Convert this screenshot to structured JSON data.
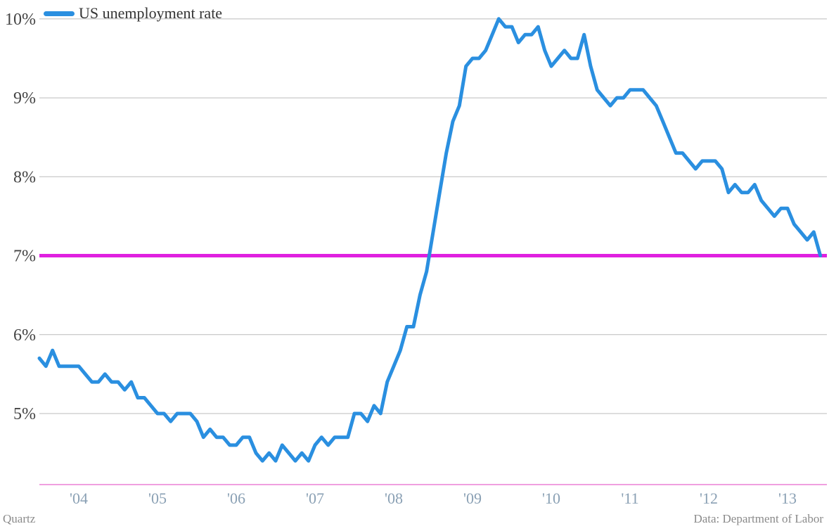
{
  "legend": {
    "label": "US unemployment rate",
    "color": "#2a8fe0"
  },
  "footer": {
    "source_left": "Quartz",
    "source_right": "Data: Department of Labor"
  },
  "colors": {
    "series": "#2a8fe0",
    "reference": "#e020e0",
    "grid": "#bbbbbb",
    "axis": "#e040c0"
  },
  "chart_data": {
    "type": "line",
    "title": "",
    "xlabel": "",
    "ylabel": "",
    "ylim": [
      4.1,
      10.15
    ],
    "xlim": [
      2003.5,
      2013.5
    ],
    "grid": true,
    "legend_position": "top-left",
    "y_ticks": [
      {
        "value": 5,
        "label": "5%"
      },
      {
        "value": 6,
        "label": "6%"
      },
      {
        "value": 7,
        "label": "7%"
      },
      {
        "value": 8,
        "label": "8%"
      },
      {
        "value": 9,
        "label": "9%"
      },
      {
        "value": 10,
        "label": "10%"
      }
    ],
    "x_ticks": [
      {
        "value": 2004,
        "label": "'04"
      },
      {
        "value": 2005,
        "label": "'05"
      },
      {
        "value": 2006,
        "label": "'06"
      },
      {
        "value": 2007,
        "label": "'07"
      },
      {
        "value": 2008,
        "label": "'08"
      },
      {
        "value": 2009,
        "label": "'09"
      },
      {
        "value": 2010,
        "label": "'10"
      },
      {
        "value": 2011,
        "label": "'11"
      },
      {
        "value": 2012,
        "label": "'12"
      },
      {
        "value": 2013,
        "label": "'13"
      }
    ],
    "reference_line": {
      "value": 7
    },
    "series": [
      {
        "name": "US unemployment rate",
        "start": "2003-07",
        "frequency": "monthly",
        "values": [
          5.7,
          5.6,
          5.8,
          5.6,
          5.6,
          5.6,
          5.6,
          5.5,
          5.4,
          5.4,
          5.5,
          5.4,
          5.4,
          5.3,
          5.4,
          5.2,
          5.2,
          5.1,
          5.0,
          5.0,
          4.9,
          5.0,
          5.0,
          5.0,
          4.9,
          4.7,
          4.8,
          4.7,
          4.7,
          4.6,
          4.6,
          4.7,
          4.7,
          4.5,
          4.4,
          4.5,
          4.4,
          4.6,
          4.5,
          4.4,
          4.5,
          4.4,
          4.6,
          4.7,
          4.6,
          4.7,
          4.7,
          4.7,
          5.0,
          5.0,
          4.9,
          5.1,
          5.0,
          5.4,
          5.6,
          5.8,
          6.1,
          6.1,
          6.5,
          6.8,
          7.3,
          7.8,
          8.3,
          8.7,
          8.9,
          9.4,
          9.5,
          9.5,
          9.6,
          9.8,
          10.0,
          9.9,
          9.9,
          9.7,
          9.8,
          9.8,
          9.9,
          9.6,
          9.4,
          9.5,
          9.6,
          9.5,
          9.5,
          9.8,
          9.4,
          9.1,
          9.0,
          8.9,
          9.0,
          9.0,
          9.1,
          9.1,
          9.1,
          9.0,
          8.9,
          8.7,
          8.5,
          8.3,
          8.3,
          8.2,
          8.1,
          8.2,
          8.2,
          8.2,
          8.1,
          7.8,
          7.9,
          7.8,
          7.8,
          7.9,
          7.7,
          7.6,
          7.5,
          7.6,
          7.6,
          7.4,
          7.3,
          7.2,
          7.3,
          7.0
        ]
      }
    ]
  }
}
